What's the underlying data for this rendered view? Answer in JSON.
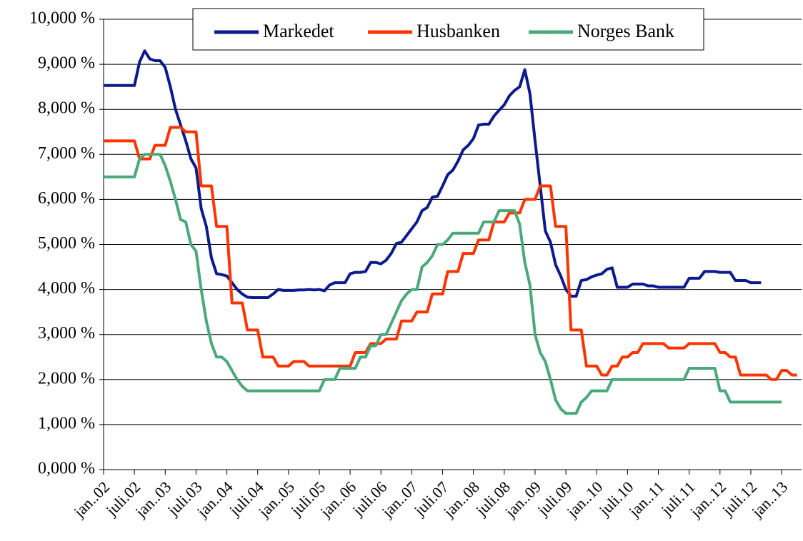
{
  "chart_data": {
    "type": "line",
    "categories": [
      "jan..02",
      null,
      null,
      null,
      null,
      null,
      "juli.02",
      null,
      null,
      null,
      null,
      null,
      "jan..03",
      null,
      null,
      null,
      null,
      null,
      "juli.03",
      null,
      null,
      null,
      null,
      null,
      "jan..04",
      null,
      null,
      null,
      null,
      null,
      "juli.04",
      null,
      null,
      null,
      null,
      null,
      "jan..05",
      null,
      null,
      null,
      null,
      null,
      "juli.05",
      null,
      null,
      null,
      null,
      null,
      "jan..06",
      null,
      null,
      null,
      null,
      null,
      "juli.06",
      null,
      null,
      null,
      null,
      null,
      "jan..07",
      null,
      null,
      null,
      null,
      null,
      "juli.07",
      null,
      null,
      null,
      null,
      null,
      "jan..08",
      null,
      null,
      null,
      null,
      null,
      "juli.08",
      null,
      null,
      null,
      null,
      null,
      "jan..09",
      null,
      null,
      null,
      null,
      null,
      "juli.09",
      null,
      null,
      null,
      null,
      null,
      "jan..10",
      null,
      null,
      null,
      null,
      null,
      "juli.10",
      null,
      null,
      null,
      null,
      null,
      "jan..11",
      null,
      null,
      null,
      null,
      null,
      "juli.11",
      null,
      null,
      null,
      null,
      null,
      "jan..12",
      null,
      null,
      null,
      null,
      null,
      "juli.12",
      null,
      null,
      null,
      null,
      null,
      "jan..13",
      null,
      null,
      null
    ],
    "series": [
      {
        "name": "Markedet",
        "color": "#0b1a8f",
        "values": [
          8.53,
          8.53,
          8.53,
          8.53,
          8.53,
          8.53,
          8.53,
          9.05,
          9.3,
          9.12,
          9.08,
          9.08,
          8.93,
          8.5,
          8.0,
          7.65,
          7.3,
          6.9,
          6.7,
          5.8,
          5.4,
          4.7,
          4.35,
          4.33,
          4.3,
          4.15,
          4.0,
          3.9,
          3.83,
          3.82,
          3.82,
          3.82,
          3.82,
          3.9,
          4.0,
          3.98,
          3.98,
          3.98,
          3.99,
          3.99,
          4.0,
          3.99,
          4.0,
          3.97,
          4.1,
          4.15,
          4.15,
          4.15,
          4.35,
          4.38,
          4.38,
          4.4,
          4.6,
          4.6,
          4.57,
          4.65,
          4.8,
          5.02,
          5.05,
          5.2,
          5.35,
          5.5,
          5.75,
          5.82,
          6.05,
          6.07,
          6.3,
          6.55,
          6.65,
          6.85,
          7.1,
          7.2,
          7.35,
          7.65,
          7.67,
          7.67,
          7.85,
          7.98,
          8.1,
          8.3,
          8.42,
          8.5,
          8.88,
          8.35,
          7.3,
          6.3,
          5.3,
          5.05,
          4.55,
          4.3,
          4.0,
          3.85,
          3.85,
          4.2,
          4.22,
          4.28,
          4.32,
          4.35,
          4.45,
          4.48,
          4.05,
          4.05,
          4.05,
          4.12,
          4.12,
          4.12,
          4.08,
          4.08,
          4.05,
          4.05,
          4.05,
          4.05,
          4.05,
          4.05,
          4.25,
          4.25,
          4.25,
          4.4,
          4.4,
          4.4,
          4.38,
          4.38,
          4.38,
          4.2,
          4.2,
          4.2,
          4.15,
          4.15,
          4.15,
          null,
          null,
          null,
          null,
          null,
          null,
          null
        ]
      },
      {
        "name": "Husbanken",
        "color": "#ff3300",
        "values": [
          7.3,
          7.3,
          7.3,
          7.3,
          7.3,
          7.3,
          7.3,
          6.9,
          6.9,
          6.9,
          7.2,
          7.2,
          7.2,
          7.6,
          7.6,
          7.6,
          7.5,
          7.5,
          7.5,
          6.3,
          6.3,
          6.3,
          5.4,
          5.4,
          5.4,
          3.7,
          3.7,
          3.7,
          3.1,
          3.1,
          3.1,
          2.5,
          2.5,
          2.5,
          2.3,
          2.3,
          2.3,
          2.4,
          2.4,
          2.4,
          2.3,
          2.3,
          2.3,
          2.3,
          2.3,
          2.3,
          2.3,
          2.3,
          2.3,
          2.6,
          2.6,
          2.6,
          2.8,
          2.8,
          2.8,
          2.9,
          2.9,
          2.9,
          3.3,
          3.3,
          3.3,
          3.5,
          3.5,
          3.5,
          3.9,
          3.9,
          3.9,
          4.4,
          4.4,
          4.4,
          4.8,
          4.8,
          4.8,
          5.1,
          5.1,
          5.1,
          5.5,
          5.5,
          5.5,
          5.7,
          5.7,
          5.7,
          6.0,
          6.0,
          6.0,
          6.3,
          6.3,
          6.3,
          5.4,
          5.4,
          5.4,
          3.1,
          3.1,
          3.1,
          2.3,
          2.3,
          2.3,
          2.1,
          2.1,
          2.3,
          2.3,
          2.5,
          2.5,
          2.6,
          2.6,
          2.8,
          2.8,
          2.8,
          2.8,
          2.8,
          2.7,
          2.7,
          2.7,
          2.7,
          2.8,
          2.8,
          2.8,
          2.8,
          2.8,
          2.8,
          2.6,
          2.6,
          2.5,
          2.5,
          2.1,
          2.1,
          2.1,
          2.1,
          2.1,
          2.1,
          2.0,
          2.0,
          2.2,
          2.2,
          2.1,
          2.1
        ]
      },
      {
        "name": "Norges Bank",
        "color": "#4aa97a",
        "values": [
          6.5,
          6.5,
          6.5,
          6.5,
          6.5,
          6.5,
          6.5,
          6.9,
          7.0,
          7.0,
          7.0,
          7.0,
          6.75,
          6.4,
          6.0,
          5.55,
          5.5,
          5.0,
          4.85,
          4.0,
          3.3,
          2.8,
          2.5,
          2.5,
          2.4,
          2.2,
          2.0,
          1.85,
          1.75,
          1.75,
          1.75,
          1.75,
          1.75,
          1.75,
          1.75,
          1.75,
          1.75,
          1.75,
          1.75,
          1.75,
          1.75,
          1.75,
          1.75,
          2.0,
          2.0,
          2.0,
          2.25,
          2.25,
          2.25,
          2.25,
          2.5,
          2.5,
          2.75,
          2.75,
          3.0,
          3.0,
          3.25,
          3.5,
          3.75,
          3.9,
          4.0,
          4.0,
          4.5,
          4.6,
          4.75,
          5.0,
          5.0,
          5.1,
          5.25,
          5.25,
          5.25,
          5.25,
          5.25,
          5.25,
          5.5,
          5.5,
          5.5,
          5.75,
          5.75,
          5.75,
          5.75,
          5.45,
          4.6,
          4.1,
          3.0,
          2.6,
          2.4,
          2.0,
          1.55,
          1.35,
          1.25,
          1.25,
          1.25,
          1.5,
          1.6,
          1.75,
          1.75,
          1.75,
          1.75,
          2.0,
          2.0,
          2.0,
          2.0,
          2.0,
          2.0,
          2.0,
          2.0,
          2.0,
          2.0,
          2.0,
          2.0,
          2.0,
          2.0,
          2.0,
          2.25,
          2.25,
          2.25,
          2.25,
          2.25,
          2.25,
          1.75,
          1.75,
          1.5,
          1.5,
          1.5,
          1.5,
          1.5,
          1.5,
          1.5,
          1.5,
          1.5,
          1.5,
          1.5,
          null,
          null,
          null
        ]
      }
    ],
    "ylim": [
      0,
      10
    ],
    "yticks": [
      {
        "value": 0,
        "label": "0,000 %"
      },
      {
        "value": 1,
        "label": "1,000 %"
      },
      {
        "value": 2,
        "label": "2,000 %"
      },
      {
        "value": 3,
        "label": "3,000 %"
      },
      {
        "value": 4,
        "label": "4,000 %"
      },
      {
        "value": 5,
        "label": "5,000 %"
      },
      {
        "value": 6,
        "label": "6,000 %"
      },
      {
        "value": 7,
        "label": "7,000 %"
      },
      {
        "value": 8,
        "label": "8,000 %"
      },
      {
        "value": 9,
        "label": "9,000 %"
      },
      {
        "value": 10,
        "label": "10,000 %"
      }
    ],
    "grid": true
  }
}
